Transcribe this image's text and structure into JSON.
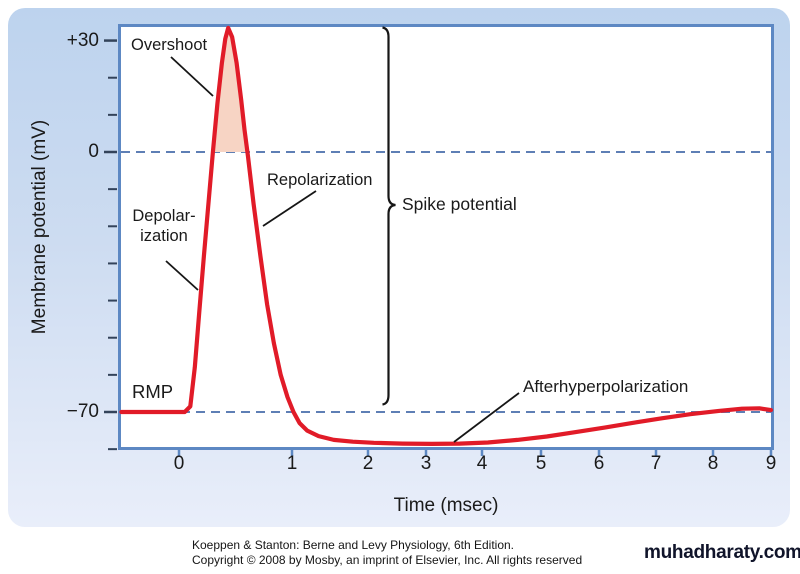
{
  "figure": {
    "y_axis": {
      "title": "Membrane potential (mV)",
      "labeled_ticks": [
        {
          "label": "+30",
          "mV": 30
        },
        {
          "label": "0",
          "mV": 0
        },
        {
          "label": "−70",
          "mV": -70
        }
      ],
      "minor_tick_mV": [
        20,
        10,
        -10,
        -20,
        -30,
        -40,
        -50,
        -60,
        -80
      ]
    },
    "x_axis": {
      "title": "Time (msec)",
      "ticks": [
        {
          "label": "0",
          "t": 0
        },
        {
          "label": "1",
          "t": 1
        },
        {
          "label": "2",
          "t": 2
        },
        {
          "label": "3",
          "t": 3
        },
        {
          "label": "4",
          "t": 4
        },
        {
          "label": "5",
          "t": 5
        },
        {
          "label": "6",
          "t": 6
        },
        {
          "label": "7",
          "t": 7
        },
        {
          "label": "8",
          "t": 8
        },
        {
          "label": "9",
          "t": 9
        }
      ]
    },
    "annotations": {
      "overshoot": "Overshoot",
      "repolarization": "Repolarization",
      "depolarization": "Depolar-\nization",
      "rmp": "RMP",
      "spike_potential": "Spike potential",
      "afterhyperpolarization": "Afterhyperpolarization"
    }
  },
  "caption": {
    "line1": "Koeppen & Stanton: Berne and Levy Physiology, 6th Edition.",
    "line2": "Copyright © 2008 by Mosby, an imprint of Elsevier, Inc. All rights reserved"
  },
  "watermark": "muhadharaty.com",
  "colors": {
    "curve_red": "#e11b28",
    "overshoot_fill": "#f7d4c4",
    "frame_blue": "#5d88c3",
    "dash_blue": "#5e7fb5",
    "tick_dark": "#33435a",
    "panel_top": "#bdd3ee",
    "panel_bottom": "#e9eefa",
    "annotation_black": "#161616"
  },
  "chart_data": {
    "type": "line",
    "title": "Nerve action potential (membrane potential vs time)",
    "xlabel": "Time (msec)",
    "ylabel": "Membrane potential (mV)",
    "xlim": [
      0,
      9
    ],
    "ylim": [
      -80,
      34
    ],
    "grid": false,
    "reference_lines_mV": [
      0,
      -70
    ],
    "rmp_mV": -70,
    "peak_mV": 33.4,
    "afterhyperpolarization_min_mV": -78.6,
    "overshoot_region": "area of spike above 0 mV (shaded)",
    "series": [
      {
        "name": "membrane potential",
        "points": [
          [
            -0.51,
            -70
          ],
          [
            0,
            -70
          ],
          [
            0.05,
            -70
          ],
          [
            0.1,
            -68.5
          ],
          [
            0.14,
            -58
          ],
          [
            0.18,
            -43
          ],
          [
            0.22,
            -28
          ],
          [
            0.26,
            -14
          ],
          [
            0.3,
            0
          ],
          [
            0.34,
            13
          ],
          [
            0.38,
            24
          ],
          [
            0.41,
            30.5
          ],
          [
            0.435,
            33.4
          ],
          [
            0.47,
            31
          ],
          [
            0.51,
            24
          ],
          [
            0.55,
            14
          ],
          [
            0.58,
            6
          ],
          [
            0.61,
            -1
          ],
          [
            0.66,
            -14
          ],
          [
            0.72,
            -28
          ],
          [
            0.78,
            -41
          ],
          [
            0.84,
            -51.5
          ],
          [
            0.9,
            -60
          ],
          [
            0.96,
            -66
          ],
          [
            1.02,
            -70
          ],
          [
            1.1,
            -73
          ],
          [
            1.2,
            -75
          ],
          [
            1.35,
            -76.5
          ],
          [
            1.55,
            -77.5
          ],
          [
            1.8,
            -78
          ],
          [
            2.1,
            -78.3
          ],
          [
            2.6,
            -78.5
          ],
          [
            3.1,
            -78.6
          ],
          [
            3.6,
            -78.5
          ],
          [
            4.1,
            -78.2
          ],
          [
            4.6,
            -77.5
          ],
          [
            5.1,
            -76.6
          ],
          [
            5.6,
            -75.4
          ],
          [
            6.1,
            -74.2
          ],
          [
            6.6,
            -72.9
          ],
          [
            7.1,
            -71.7
          ],
          [
            7.6,
            -70.6
          ],
          [
            8.1,
            -69.7
          ],
          [
            8.5,
            -69.1
          ],
          [
            8.8,
            -69.0
          ],
          [
            9.0,
            -69.5
          ]
        ]
      }
    ]
  }
}
